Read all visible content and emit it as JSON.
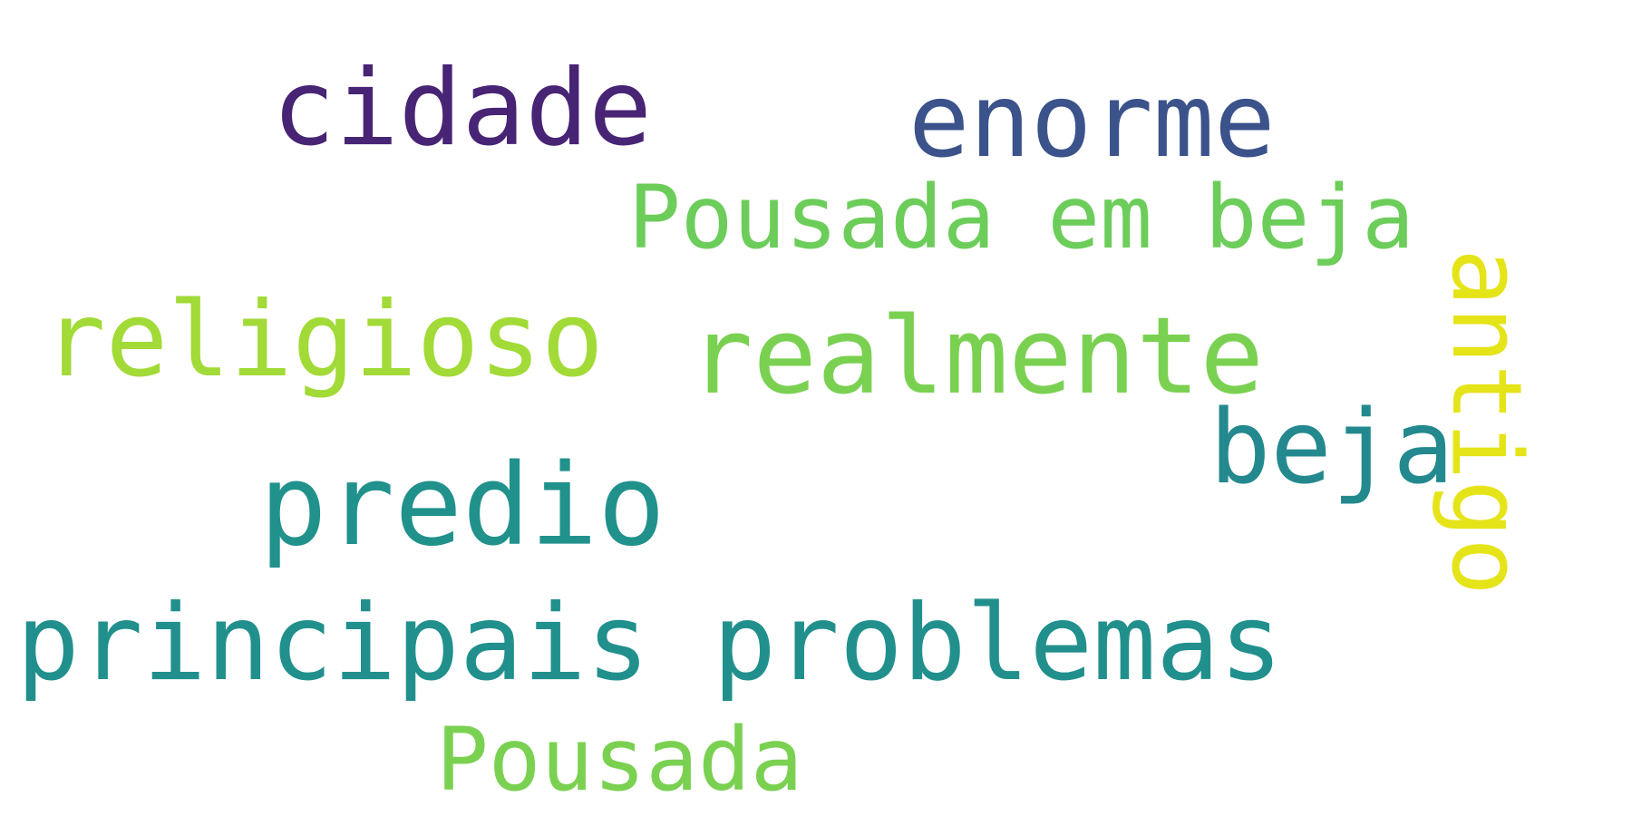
{
  "words": [
    {
      "text": "cidade",
      "color": "#482475"
    },
    {
      "text": "enorme",
      "color": "#3b528b"
    },
    {
      "text": "Pousada em beja",
      "color": "#6ccd5a"
    },
    {
      "text": "religioso",
      "color": "#a2da37"
    },
    {
      "text": "realmente",
      "color": "#7ad151"
    },
    {
      "text": "beja",
      "color": "#23898e"
    },
    {
      "text": "antigo",
      "color": "#e5e419"
    },
    {
      "text": "predio",
      "color": "#21918c"
    },
    {
      "text": "principais problemas",
      "color": "#21908d"
    },
    {
      "text": "Pousada",
      "color": "#7ad151"
    }
  ]
}
